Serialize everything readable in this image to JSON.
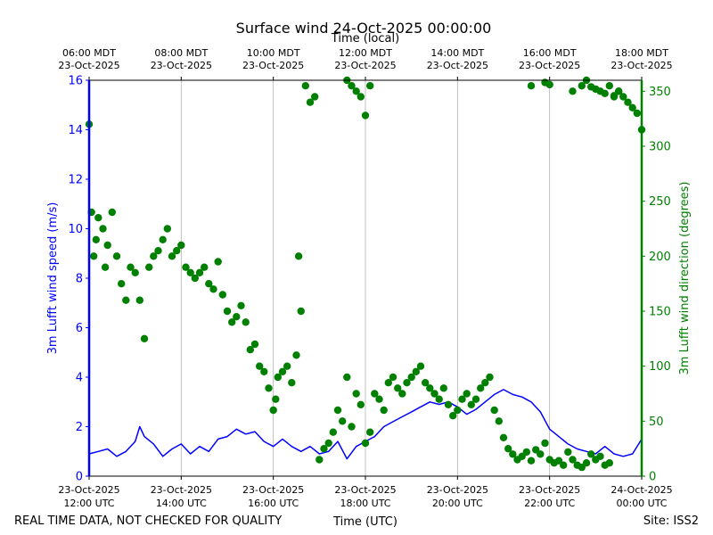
{
  "header": {
    "title": "Surface wind 24-Oct-2025 00:00:00",
    "footer_left": "REAL TIME DATA, NOT CHECKED FOR QUALITY",
    "footer_site": "Site: ISS2"
  },
  "chart_data": {
    "type": "line+scatter",
    "title": "Surface wind 24-Oct-2025 00:00:00",
    "xlabel": "Time (UTC)",
    "xlabel_top": "Time (local)",
    "ylabel": "3m Lufft wind speed (m/s)",
    "ylabel_right": "3m Lufft wind direction (degrees)",
    "x_range_hours_utc": [
      12,
      24
    ],
    "ylim": [
      0,
      16
    ],
    "ylim_right": [
      0,
      360
    ],
    "y_ticks": [
      "0",
      "2",
      "4",
      "6",
      "8",
      "10",
      "12",
      "14",
      "16"
    ],
    "y_ticks_right": [
      "0",
      "50",
      "100",
      "150",
      "200",
      "250",
      "300",
      "350"
    ],
    "x_ticks_bottom": [
      {
        "hour": 12,
        "date": "23-Oct-2025",
        "time": "12:00 UTC"
      },
      {
        "hour": 14,
        "date": "23-Oct-2025",
        "time": "14:00 UTC"
      },
      {
        "hour": 16,
        "date": "23-Oct-2025",
        "time": "16:00 UTC"
      },
      {
        "hour": 18,
        "date": "23-Oct-2025",
        "time": "18:00 UTC"
      },
      {
        "hour": 20,
        "date": "23-Oct-2025",
        "time": "20:00 UTC"
      },
      {
        "hour": 22,
        "date": "23-Oct-2025",
        "time": "22:00 UTC"
      },
      {
        "hour": 24,
        "date": "24-Oct-2025",
        "time": "00:00 UTC"
      }
    ],
    "x_ticks_top": [
      {
        "hour": 12,
        "time": "06:00 MDT",
        "date": "23-Oct-2025"
      },
      {
        "hour": 14,
        "time": "08:00 MDT",
        "date": "23-Oct-2025"
      },
      {
        "hour": 16,
        "time": "10:00 MDT",
        "date": "23-Oct-2025"
      },
      {
        "hour": 18,
        "time": "12:00 MDT",
        "date": "23-Oct-2025"
      },
      {
        "hour": 20,
        "time": "14:00 MDT",
        "date": "23-Oct-2025"
      },
      {
        "hour": 22,
        "time": "16:00 MDT",
        "date": "23-Oct-2025"
      },
      {
        "hour": 24,
        "time": "18:00 MDT",
        "date": "23-Oct-2025"
      }
    ],
    "colors": {
      "speed": "#0000ff",
      "direction": "#008000",
      "grid": "#b0b0b0"
    },
    "series": [
      {
        "name": "wind speed",
        "axis": "left",
        "style": "line",
        "x": [
          12.0,
          12.2,
          12.4,
          12.6,
          12.8,
          13.0,
          13.1,
          13.2,
          13.4,
          13.6,
          13.8,
          14.0,
          14.2,
          14.4,
          14.6,
          14.8,
          15.0,
          15.2,
          15.4,
          15.6,
          15.8,
          16.0,
          16.2,
          16.4,
          16.6,
          16.8,
          17.0,
          17.2,
          17.4,
          17.6,
          17.8,
          18.0,
          18.2,
          18.4,
          18.6,
          18.8,
          19.0,
          19.2,
          19.4,
          19.6,
          19.8,
          20.0,
          20.2,
          20.4,
          20.6,
          20.8,
          21.0,
          21.2,
          21.4,
          21.6,
          21.8,
          22.0,
          22.2,
          22.4,
          22.6,
          22.8,
          23.0,
          23.2,
          23.4,
          23.6,
          23.8,
          24.0
        ],
        "y": [
          0.9,
          1.0,
          1.1,
          0.8,
          1.0,
          1.4,
          2.0,
          1.6,
          1.3,
          0.8,
          1.1,
          1.3,
          0.9,
          1.2,
          1.0,
          1.5,
          1.6,
          1.9,
          1.7,
          1.8,
          1.4,
          1.2,
          1.5,
          1.2,
          1.0,
          1.2,
          0.9,
          1.0,
          1.4,
          0.7,
          1.2,
          1.4,
          1.6,
          2.0,
          2.2,
          2.4,
          2.6,
          2.8,
          3.0,
          2.9,
          3.0,
          2.8,
          2.5,
          2.7,
          3.0,
          3.3,
          3.5,
          3.3,
          3.2,
          3.0,
          2.6,
          1.9,
          1.6,
          1.3,
          1.1,
          1.0,
          0.9,
          1.2,
          0.9,
          0.8,
          0.9,
          1.5
        ]
      },
      {
        "name": "wind direction",
        "axis": "right",
        "style": "scatter",
        "x": [
          12.0,
          12.05,
          12.1,
          12.15,
          12.2,
          12.3,
          12.35,
          12.4,
          12.5,
          12.6,
          12.7,
          12.8,
          12.9,
          13.0,
          13.1,
          13.2,
          13.3,
          13.4,
          13.5,
          13.6,
          13.7,
          13.8,
          13.9,
          14.0,
          14.1,
          14.2,
          14.3,
          14.4,
          14.5,
          14.6,
          14.7,
          14.8,
          14.9,
          15.0,
          15.1,
          15.2,
          15.3,
          15.4,
          15.5,
          15.6,
          15.7,
          15.8,
          15.9,
          16.0,
          16.05,
          16.1,
          16.2,
          16.3,
          16.4,
          16.5,
          16.55,
          16.6,
          16.7,
          16.8,
          16.9,
          17.0,
          17.1,
          17.2,
          17.3,
          17.4,
          17.5,
          17.6,
          17.7,
          17.8,
          17.9,
          18.0,
          18.1,
          18.2,
          18.3,
          18.4,
          18.5,
          18.6,
          18.7,
          18.8,
          18.9,
          19.0,
          19.1,
          19.2,
          19.3,
          19.4,
          19.5,
          19.6,
          19.7,
          19.8,
          19.9,
          20.0,
          20.1,
          20.2,
          20.3,
          20.4,
          20.5,
          20.6,
          20.7,
          20.8,
          20.9,
          21.0,
          21.1,
          21.2,
          21.3,
          21.4,
          21.5,
          21.6,
          21.7,
          21.8,
          21.9,
          22.0,
          22.1,
          22.2,
          22.3,
          22.4,
          22.5,
          22.6,
          22.7,
          22.8,
          22.9,
          23.0,
          23.1,
          23.2,
          23.3,
          23.4,
          23.5,
          23.6,
          23.7,
          23.8,
          23.9,
          24.0
        ],
        "y": [
          320,
          240,
          200,
          215,
          235,
          225,
          190,
          210,
          240,
          200,
          175,
          160,
          190,
          185,
          160,
          125,
          190,
          200,
          205,
          215,
          225,
          200,
          205,
          210,
          190,
          185,
          180,
          185,
          190,
          175,
          170,
          195,
          165,
          150,
          140,
          145,
          155,
          140,
          115,
          120,
          100,
          95,
          80,
          60,
          70,
          90,
          95,
          100,
          85,
          110,
          200,
          150,
          355,
          340,
          345,
          15,
          25,
          30,
          40,
          60,
          50,
          90,
          45,
          75,
          65,
          30,
          40,
          75,
          70,
          60,
          85,
          90,
          80,
          75,
          85,
          90,
          95,
          100,
          85,
          80,
          75,
          70,
          80,
          65,
          55,
          60,
          70,
          75,
          65,
          70,
          80,
          85,
          90,
          60,
          50,
          35,
          25,
          20,
          15,
          18,
          22,
          14,
          24,
          20,
          30,
          15,
          12,
          14,
          10,
          22,
          15,
          10,
          8,
          12,
          20,
          15,
          18,
          10,
          12,
          345,
          350,
          345,
          340,
          335,
          330,
          315
        ]
      },
      {
        "name": "wind direction (upper band)",
        "axis": "right",
        "style": "scatter",
        "x": [
          17.6,
          17.7,
          17.8,
          17.9,
          18.1,
          18.0,
          21.6,
          21.9,
          22.0,
          22.5,
          22.7,
          22.8,
          22.9,
          23.0,
          23.1,
          23.2,
          23.3,
          23.4,
          23.5
        ],
        "y": [
          360,
          355,
          350,
          345,
          355,
          328,
          355,
          358,
          356,
          350,
          355,
          360,
          354,
          352,
          350,
          348,
          355,
          346,
          350
        ]
      }
    ]
  }
}
